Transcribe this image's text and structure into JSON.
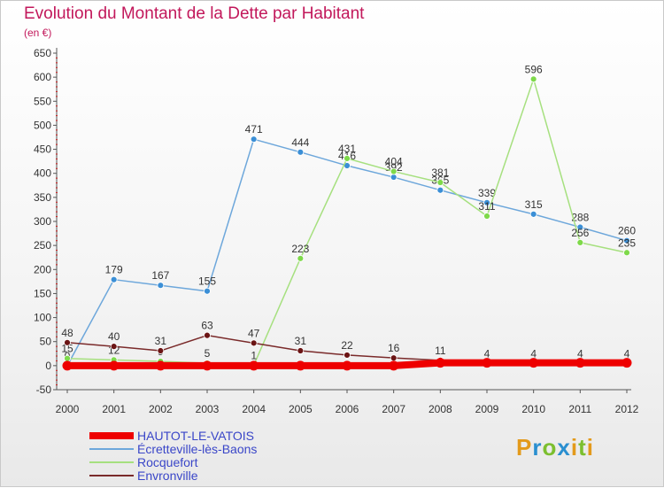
{
  "header": {
    "title": "Evolution du Montant de la Dette par Habitant",
    "unit": "(en €)"
  },
  "logo": {
    "text": "Proxiti"
  },
  "chart_data": {
    "type": "line",
    "title": "Evolution du Montant de la Dette par Habitant",
    "ylabel": "(en €)",
    "xlabel": "",
    "ylim": [
      -50,
      650
    ],
    "yticks": [
      -50,
      0,
      50,
      100,
      150,
      200,
      250,
      300,
      350,
      400,
      450,
      500,
      550,
      600,
      650
    ],
    "grid": false,
    "legend_position": "bottom-left",
    "x": [
      "2000",
      "2001",
      "2002",
      "2003",
      "2004",
      "2005",
      "2006",
      "2007",
      "2008",
      "2009",
      "2010",
      "2011",
      "2012"
    ],
    "series": [
      {
        "name": "Écretteville-lès-Baons",
        "color": "#3b8fd6",
        "line_color": "#6da7db",
        "values": [
          0,
          179,
          167,
          155,
          471,
          444,
          416,
          392,
          365,
          339,
          315,
          288,
          260
        ]
      },
      {
        "name": "Rocquefort",
        "color": "#7ed94a",
        "line_color": "#a6e07f",
        "values": [
          15,
          12,
          9,
          5,
          1,
          223,
          431,
          404,
          381,
          311,
          596,
          256,
          235
        ]
      },
      {
        "name": "Envronville",
        "color": "#6b1414",
        "line_color": "#7a2a2a",
        "values": [
          48,
          40,
          31,
          63,
          47,
          31,
          22,
          16,
          11,
          4,
          4,
          4,
          4
        ]
      },
      {
        "name": "HAUTOT-LE-VATOIS",
        "color": "#ee0000",
        "line_color": "#ee0000",
        "thick": true,
        "values": [
          0,
          0,
          0,
          0,
          0,
          0,
          0,
          0,
          6,
          6,
          6,
          6,
          6
        ]
      }
    ],
    "legend_order": [
      "HAUTOT-LE-VATOIS",
      "Écretteville-lès-Baons",
      "Rocquefort",
      "Envronville"
    ]
  }
}
